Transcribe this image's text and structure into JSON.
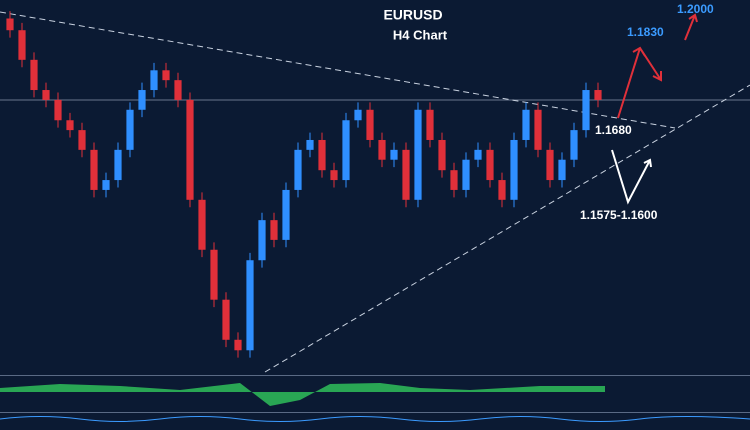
{
  "chart_data": {
    "type": "candlestick",
    "title": "EURUSD",
    "subtitle": "H4 Chart",
    "ylim": [
      1.13,
      1.19
    ],
    "up_color": "#2f8fff",
    "down_color": "#e0303a",
    "open": [
      1.187,
      1.1851,
      1.1803,
      1.1754,
      1.1738,
      1.1705,
      1.1689,
      1.1657,
      1.1592,
      1.1608,
      1.1657,
      1.1722,
      1.1754,
      1.1786,
      1.177,
      1.1738,
      1.1576,
      1.1495,
      1.1414,
      1.1349,
      1.1332,
      1.1478,
      1.1543,
      1.1511,
      1.1592,
      1.1657,
      1.1673,
      1.1624,
      1.1608,
      1.1705,
      1.1722,
      1.1673,
      1.1641,
      1.1657,
      1.1576,
      1.1722,
      1.1673,
      1.1624,
      1.1592,
      1.1641,
      1.1657,
      1.1608,
      1.1576,
      1.1673,
      1.1722,
      1.1657,
      1.1608,
      1.1641,
      1.1689,
      1.1754
    ],
    "high": [
      1.1882,
      1.1863,
      1.1815,
      1.1766,
      1.175,
      1.1717,
      1.1701,
      1.1669,
      1.162,
      1.1669,
      1.1734,
      1.1766,
      1.1798,
      1.1798,
      1.1782,
      1.175,
      1.1588,
      1.1507,
      1.1426,
      1.1361,
      1.149,
      1.1555,
      1.1555,
      1.1604,
      1.1669,
      1.1685,
      1.1685,
      1.1636,
      1.1717,
      1.1734,
      1.1734,
      1.1685,
      1.1669,
      1.1669,
      1.1734,
      1.1734,
      1.1685,
      1.1636,
      1.1653,
      1.1669,
      1.1669,
      1.162,
      1.1685,
      1.1734,
      1.1734,
      1.1669,
      1.1653,
      1.1701,
      1.1766,
      1.1766
    ],
    "low": [
      1.1839,
      1.1791,
      1.1742,
      1.1726,
      1.1693,
      1.1677,
      1.1645,
      1.158,
      1.158,
      1.1596,
      1.1645,
      1.171,
      1.1742,
      1.1758,
      1.1726,
      1.1564,
      1.1483,
      1.1402,
      1.1337,
      1.132,
      1.132,
      1.1466,
      1.1499,
      1.1499,
      1.158,
      1.1645,
      1.1612,
      1.1596,
      1.1596,
      1.1693,
      1.1661,
      1.1629,
      1.1629,
      1.1564,
      1.1564,
      1.1661,
      1.1612,
      1.158,
      1.158,
      1.1629,
      1.1596,
      1.1564,
      1.1564,
      1.1661,
      1.1645,
      1.1596,
      1.1596,
      1.1629,
      1.1677,
      1.1726
    ],
    "close": [
      1.1851,
      1.1803,
      1.1754,
      1.1738,
      1.1705,
      1.1689,
      1.1657,
      1.1592,
      1.1608,
      1.1657,
      1.1722,
      1.1754,
      1.1786,
      1.177,
      1.1738,
      1.1576,
      1.1495,
      1.1414,
      1.1349,
      1.1332,
      1.1478,
      1.1543,
      1.1511,
      1.1592,
      1.1657,
      1.1673,
      1.1624,
      1.1608,
      1.1705,
      1.1722,
      1.1673,
      1.1641,
      1.1657,
      1.1576,
      1.1722,
      1.1673,
      1.1624,
      1.1592,
      1.1641,
      1.1657,
      1.1608,
      1.1576,
      1.1673,
      1.1722,
      1.1657,
      1.1608,
      1.1641,
      1.1689,
      1.1754,
      1.1738
    ],
    "annotations": [
      "1.1680",
      "1.1575-1.1600",
      "1.1830",
      "1.2000"
    ]
  }
}
